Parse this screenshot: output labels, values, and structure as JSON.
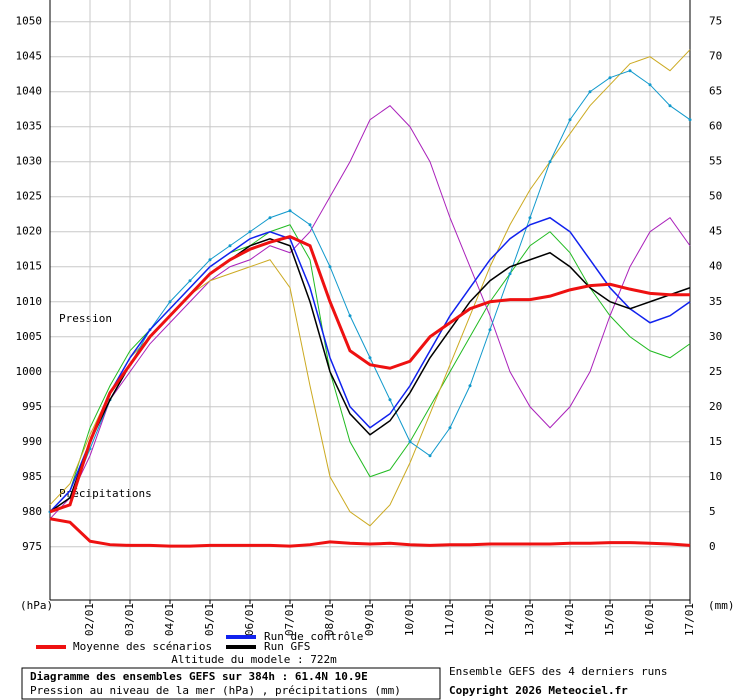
{
  "chart_data": {
    "type": "line",
    "title": "Diagramme des ensembles GEFS sur 384h : 61.4N 10.9E",
    "subtitle": "Pression au niveau de la mer (hPa) , précipitations (mm)",
    "pressure_label": "Pression",
    "precip_label": "Précipitations",
    "ylabel": "(hPa)",
    "y2label": "(mm)",
    "altitude": "Altitude du modele : 722m",
    "source_note": "Ensemble GEFS des 4 derniers runs",
    "copyright": "Copyright 2026 Meteociel.fr",
    "grid": true,
    "xlim": [
      0,
      384
    ],
    "xticks": [
      {
        "value": 24,
        "label": "02/01"
      },
      {
        "value": 48,
        "label": "03/01"
      },
      {
        "value": 72,
        "label": "04/01"
      },
      {
        "value": 96,
        "label": "05/01"
      },
      {
        "value": 120,
        "label": "06/01"
      },
      {
        "value": 144,
        "label": "07/01"
      },
      {
        "value": 168,
        "label": "08/01"
      },
      {
        "value": 192,
        "label": "09/01"
      },
      {
        "value": 216,
        "label": "10/01"
      },
      {
        "value": 240,
        "label": "11/01"
      },
      {
        "value": 264,
        "label": "12/01"
      },
      {
        "value": 288,
        "label": "13/01"
      },
      {
        "value": 312,
        "label": "14/01"
      },
      {
        "value": 336,
        "label": "15/01"
      },
      {
        "value": 360,
        "label": "16/01"
      },
      {
        "value": 384,
        "label": "17/01"
      }
    ],
    "ylim": [
      967.4,
      1053.1
    ],
    "yticks": [
      975,
      980,
      985,
      990,
      995,
      1000,
      1005,
      1010,
      1015,
      1020,
      1025,
      1030,
      1035,
      1040,
      1045,
      1050
    ],
    "y2lim": [
      -7.6,
      78.1
    ],
    "y2ticks": [
      0,
      5,
      10,
      15,
      20,
      25,
      30,
      35,
      40,
      45,
      50,
      55,
      60,
      65,
      70,
      75
    ],
    "x": [
      0,
      12,
      24,
      36,
      48,
      60,
      72,
      84,
      96,
      108,
      120,
      132,
      144,
      156,
      168,
      180,
      192,
      204,
      216,
      228,
      240,
      252,
      264,
      276,
      288,
      300,
      312,
      324,
      336,
      348,
      360,
      372,
      384
    ],
    "members": [
      {
        "color": "#22bb22",
        "values": [
          980,
          983,
          992,
          998,
          1003,
          1006,
          1009,
          1012,
          1015,
          1017,
          1018,
          1020,
          1021,
          1016,
          1000,
          990,
          985,
          986,
          990,
          995,
          1000,
          1005,
          1010,
          1014,
          1018,
          1020,
          1017,
          1012,
          1008,
          1005,
          1003,
          1002,
          1004
        ]
      },
      {
        "color": "#aa22bb",
        "values": [
          979,
          982,
          988,
          996,
          1000,
          1004,
          1007,
          1010,
          1013,
          1015,
          1016,
          1018,
          1017,
          1020,
          1025,
          1030,
          1036,
          1038,
          1035,
          1030,
          1022,
          1015,
          1008,
          1000,
          995,
          992,
          995,
          1000,
          1008,
          1015,
          1020,
          1022,
          1018
        ]
      },
      {
        "color": "#ccaa22",
        "values": [
          981,
          984,
          991,
          997,
          1002,
          1005,
          1008,
          1011,
          1013,
          1014,
          1015,
          1016,
          1012,
          998,
          985,
          980,
          978,
          981,
          987,
          994,
          1001,
          1008,
          1015,
          1021,
          1026,
          1030,
          1034,
          1038,
          1041,
          1044,
          1045,
          1043,
          1046
        ]
      },
      {
        "color": "#1199cc",
        "values": [
          980,
          982,
          989,
          996,
          1001,
          1006,
          1010,
          1013,
          1016,
          1018,
          1020,
          1022,
          1023,
          1021,
          1015,
          1008,
          1002,
          996,
          990,
          988,
          992,
          998,
          1006,
          1014,
          1022,
          1030,
          1036,
          1040,
          1042,
          1043,
          1041,
          1038,
          1036
        ]
      }
    ],
    "series": [
      {
        "name": "Moyenne des scénarios",
        "color": "#ee1111",
        "values": [
          980,
          981,
          990,
          997,
          1001,
          1005,
          1008,
          1011,
          1014,
          1016,
          1017.5,
          1018.5,
          1019.3,
          1018,
          1010,
          1003,
          1001,
          1000.5,
          1001.5,
          1005,
          1007,
          1009,
          1010,
          1010.3,
          1010.3,
          1010.8,
          1011.7,
          1012.3,
          1012.5,
          1011.8,
          1011.2,
          1011,
          1011
        ]
      },
      {
        "name": "Run de contrôle",
        "color": "#1122ee",
        "values": [
          980,
          983,
          990,
          997,
          1002,
          1006,
          1009,
          1012,
          1015,
          1017,
          1019,
          1020,
          1019,
          1012,
          1002,
          995,
          992,
          994,
          998,
          1003,
          1008,
          1012,
          1016,
          1019,
          1021,
          1022,
          1020,
          1016,
          1012,
          1009,
          1007,
          1008,
          1010
        ]
      },
      {
        "name": "Run GFS",
        "color": "#000000",
        "values": [
          980,
          982,
          990,
          996,
          1001,
          1005,
          1008,
          1011,
          1014,
          1016,
          1018,
          1019,
          1018,
          1010,
          1000,
          994,
          991,
          993,
          997,
          1002,
          1006,
          1010,
          1013,
          1015,
          1016,
          1017,
          1015,
          1012,
          1010,
          1009,
          1010,
          1011,
          1012
        ]
      }
    ],
    "precip_mean": {
      "color": "#ee1111",
      "axis": "y2",
      "values": [
        4,
        3.5,
        0.8,
        0.3,
        0.2,
        0.2,
        0.1,
        0.1,
        0.2,
        0.2,
        0.2,
        0.2,
        0.1,
        0.3,
        0.7,
        0.5,
        0.4,
        0.5,
        0.3,
        0.2,
        0.3,
        0.3,
        0.4,
        0.4,
        0.4,
        0.4,
        0.5,
        0.5,
        0.6,
        0.6,
        0.5,
        0.4,
        0.2
      ]
    }
  }
}
